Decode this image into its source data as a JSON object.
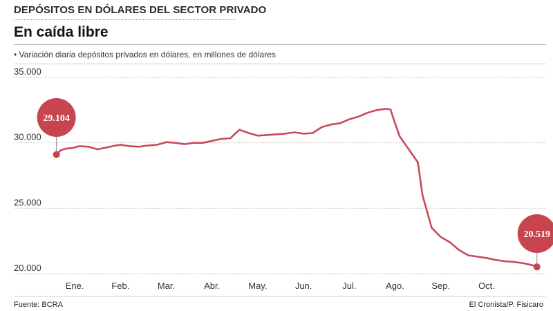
{
  "header": {
    "kicker": "DEPÓSITOS EN DÓLARES DEL SECTOR PRIVADO",
    "headline": "En caída libre",
    "subtitle": "• Variación diaria depósitos privados en dólares, en millones de dólares"
  },
  "footer": {
    "source": "Fuente: BCRA",
    "credit": "El Cronista/P. Fisicaro"
  },
  "colors": {
    "line": "#c9485b",
    "callout": "#c8444f",
    "grid": "#bbbbbb"
  },
  "chart_data": {
    "type": "line",
    "title": "En caída libre",
    "xlabel": "",
    "ylabel": "millones de dólares",
    "ylim": [
      20000,
      35000
    ],
    "x_range": [
      -0.5,
      10.3
    ],
    "y_ticks": [
      35000,
      30000,
      25000,
      20000
    ],
    "y_tick_labels": [
      "35.000",
      "30.000",
      "25.000",
      "20.000"
    ],
    "months": [
      "Ene.",
      "Feb.",
      "Mar.",
      "Abr.",
      "May.",
      "Jun.",
      "Jul.",
      "Ago.",
      "Sep.",
      "Oct."
    ],
    "series": [
      {
        "name": "Depósitos privados en dólares",
        "x": [
          -0.4,
          -0.3,
          -0.2,
          -0.05,
          0.1,
          0.3,
          0.5,
          0.7,
          0.9,
          1.0,
          1.2,
          1.4,
          1.6,
          1.8,
          2.0,
          2.2,
          2.4,
          2.6,
          2.8,
          3.0,
          3.2,
          3.4,
          3.6,
          3.8,
          4.0,
          4.2,
          4.4,
          4.6,
          4.8,
          5.0,
          5.2,
          5.4,
          5.6,
          5.8,
          6.0,
          6.2,
          6.4,
          6.6,
          6.8,
          6.9,
          7.0,
          7.1,
          7.3,
          7.5,
          7.6,
          7.8,
          8.0,
          8.2,
          8.4,
          8.6,
          8.8,
          9.0,
          9.2,
          9.4,
          9.6,
          9.8,
          10.0,
          10.1
        ],
        "values": [
          29104,
          29450,
          29550,
          29600,
          29750,
          29700,
          29500,
          29650,
          29800,
          29850,
          29750,
          29700,
          29800,
          29850,
          30050,
          30000,
          29900,
          30000,
          30000,
          30150,
          30300,
          30350,
          31000,
          30750,
          30550,
          30600,
          30650,
          30700,
          30800,
          30700,
          30750,
          31200,
          31400,
          31500,
          31800,
          32000,
          32300,
          32500,
          32600,
          32550,
          31500,
          30500,
          29500,
          28500,
          26000,
          23500,
          22800,
          22400,
          21800,
          21400,
          21300,
          21200,
          21050,
          20950,
          20900,
          20800,
          20650,
          20519
        ]
      }
    ],
    "annotations": [
      {
        "label": "29.104",
        "value": 29104,
        "position": "start"
      },
      {
        "label": "20.519",
        "value": 20519,
        "position": "end"
      }
    ]
  }
}
